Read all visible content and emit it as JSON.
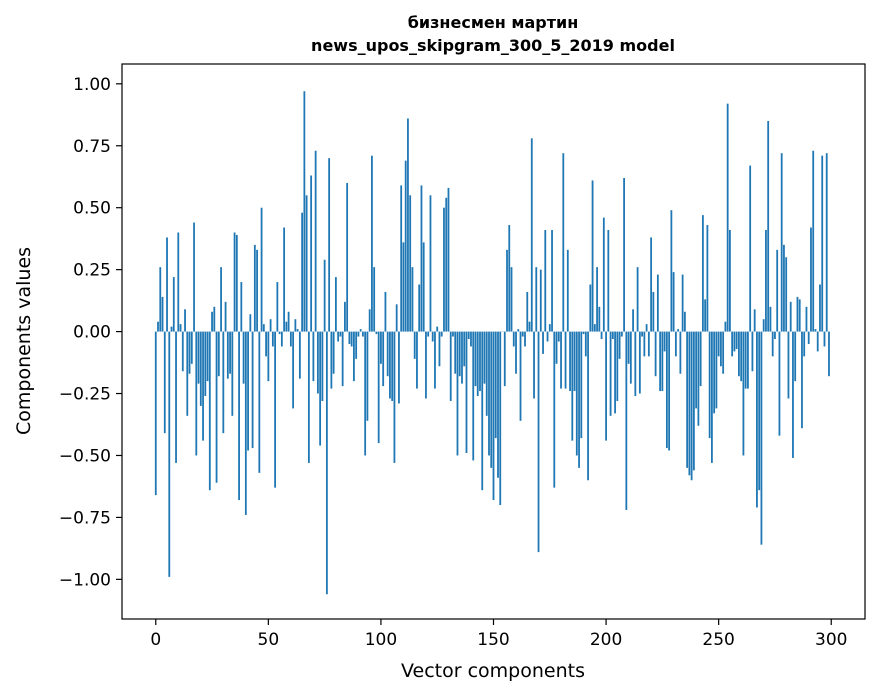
{
  "chart_data": {
    "type": "bar",
    "title": [
      "бизнесмен мартин",
      "news_upos_skipgram_300_5_2019 model"
    ],
    "xlabel": "Vector components",
    "ylabel": "Components values",
    "xlim": [
      -15,
      315
    ],
    "ylim": [
      -1.16,
      1.08
    ],
    "x_ticks": [
      0,
      50,
      100,
      150,
      200,
      250,
      300
    ],
    "y_ticks": [
      -1.0,
      -0.75,
      -0.5,
      -0.25,
      0.0,
      0.25,
      0.5,
      0.75,
      1.0
    ],
    "y_tick_labels": [
      "−1.00",
      "−0.75",
      "−0.50",
      "−0.25",
      "0.00",
      "0.25",
      "0.50",
      "0.75",
      "1.00"
    ],
    "bar_color": "#1f77b4",
    "grid": false,
    "values": [
      -0.66,
      0.04,
      0.26,
      0.14,
      -0.41,
      0.38,
      -0.99,
      0.02,
      0.22,
      -0.53,
      0.4,
      0.03,
      -0.16,
      0.09,
      -0.34,
      -0.17,
      -0.13,
      0.44,
      -0.5,
      -0.21,
      -0.3,
      -0.44,
      -0.26,
      -0.2,
      -0.64,
      0.08,
      0.1,
      -0.61,
      -0.18,
      0.26,
      -0.41,
      0.12,
      -0.19,
      -0.17,
      -0.34,
      0.4,
      0.39,
      -0.68,
      0.2,
      -0.21,
      -0.74,
      -0.48,
      0.07,
      -0.47,
      0.35,
      0.33,
      -0.57,
      0.5,
      0.03,
      -0.1,
      -0.2,
      0.05,
      -0.06,
      -0.63,
      0.2,
      -0.01,
      -0.06,
      0.42,
      0.04,
      0.08,
      -0.06,
      -0.31,
      0.05,
      0.01,
      -0.19,
      0.48,
      0.97,
      0.55,
      -0.53,
      0.63,
      -0.2,
      0.73,
      -0.25,
      -0.46,
      -0.28,
      0.29,
      -1.06,
      0.7,
      -0.23,
      -0.17,
      0.22,
      -0.04,
      -0.02,
      -0.22,
      0.12,
      0.6,
      -0.05,
      -0.06,
      -0.2,
      -0.11,
      -0.02,
      0.01,
      -0.02,
      -0.5,
      -0.36,
      0.09,
      0.71,
      0.26,
      -0.01,
      -0.45,
      -0.13,
      -0.22,
      0.16,
      -0.18,
      -0.27,
      -0.28,
      -0.53,
      0.11,
      -0.29,
      0.59,
      0.36,
      0.69,
      0.86,
      0.55,
      0.26,
      -0.11,
      -0.23,
      0.19,
      0.59,
      0.36,
      -0.27,
      -0.02,
      0.55,
      -0.04,
      -0.23,
      0.02,
      -0.14,
      -0.02,
      0.5,
      0.54,
      0.58,
      -0.28,
      -0.02,
      -0.17,
      -0.5,
      -0.18,
      -0.21,
      -0.14,
      -0.49,
      -0.03,
      -0.06,
      -0.52,
      -0.22,
      -0.26,
      -0.24,
      -0.64,
      -0.21,
      -0.34,
      -0.5,
      -0.55,
      -0.68,
      -0.43,
      -0.59,
      -0.7,
      0.0,
      -0.22,
      0.33,
      0.43,
      0.26,
      -0.06,
      -0.17,
      0.01,
      -0.36,
      -0.02,
      -0.06,
      0.16,
      0.04,
      0.78,
      -0.27,
      0.26,
      -0.89,
      0.25,
      -0.09,
      0.41,
      -0.04,
      0.03,
      0.41,
      -0.63,
      -0.13,
      -0.04,
      -0.23,
      0.72,
      -0.23,
      0.33,
      -0.24,
      -0.44,
      -0.24,
      -0.5,
      -0.55,
      -0.43,
      -0.01,
      -0.1,
      -0.6,
      0.19,
      0.61,
      0.03,
      0.26,
      0.1,
      -0.03,
      0.46,
      -0.44,
      0.41,
      -0.34,
      -0.03,
      -0.33,
      -0.28,
      -0.11,
      -0.02,
      0.62,
      -0.72,
      -0.13,
      -0.21,
      0.09,
      -0.26,
      0.26,
      -0.25,
      -0.02,
      -0.1,
      0.03,
      -0.1,
      0.38,
      0.16,
      -0.18,
      0.23,
      -0.24,
      -0.24,
      -0.08,
      -0.47,
      -0.48,
      0.49,
      0.24,
      -0.1,
      0.01,
      -0.17,
      0.23,
      0.08,
      -0.55,
      -0.58,
      -0.6,
      -0.56,
      -0.31,
      -0.38,
      -0.22,
      0.47,
      0.13,
      0.43,
      -0.43,
      -0.53,
      -0.33,
      -0.31,
      -0.1,
      -0.14,
      -0.17,
      0.04,
      0.92,
      0.41,
      -0.1,
      -0.08,
      -0.07,
      -0.18,
      -0.2,
      -0.5,
      -0.23,
      -0.23,
      0.67,
      -0.16,
      0.09,
      -0.71,
      -0.64,
      -0.86,
      0.05,
      0.41,
      0.85,
      0.1,
      -0.1,
      -0.03,
      0.33,
      -0.42,
      0.72,
      0.35,
      0.3,
      -0.27,
      0.12,
      -0.51,
      -0.2,
      0.14,
      0.13,
      -0.39,
      -0.1,
      0.1,
      -0.05,
      0.42,
      0.73,
      0.01,
      -0.08,
      0.19,
      0.71,
      -0.06,
      0.72,
      -0.18
    ]
  }
}
